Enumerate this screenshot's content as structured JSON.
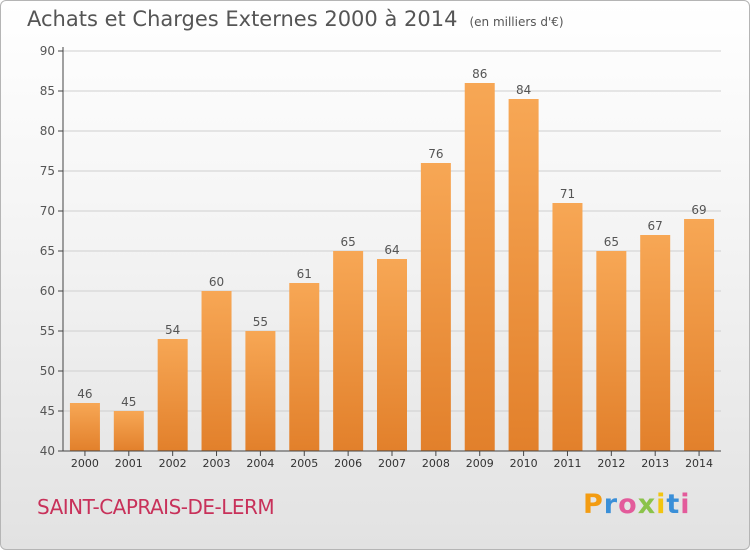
{
  "header": {
    "title": "Achats et Charges Externes 2000 à 2014",
    "unit": "(en milliers d'€)"
  },
  "footer": {
    "town": "SAINT-CAPRAIS-DE-LERM",
    "logo": "Proxiti",
    "logo_colors": [
      "#f39c12",
      "#3a8fd8",
      "#e35b9b",
      "#8bc34a",
      "#f2c511",
      "#3a8fd8",
      "#e35b9b"
    ]
  },
  "colors": {
    "bar_top": "#f7a755",
    "bar_bottom": "#e2802b",
    "axis": "#444444",
    "grid": "#cfcfcf",
    "text": "#555555"
  },
  "chart_data": {
    "type": "bar",
    "title": "Achats et Charges Externes 2000 à 2014",
    "subtitle": "(en milliers d'€)",
    "xlabel": "",
    "ylabel": "",
    "categories": [
      "2000",
      "2001",
      "2002",
      "2003",
      "2004",
      "2005",
      "2006",
      "2007",
      "2008",
      "2009",
      "2010",
      "2011",
      "2012",
      "2013",
      "2014"
    ],
    "values": [
      46,
      45,
      54,
      60,
      55,
      61,
      65,
      64,
      76,
      86,
      84,
      71,
      65,
      67,
      69
    ],
    "ylim": [
      40,
      90
    ],
    "yticks": [
      40,
      45,
      50,
      55,
      60,
      65,
      70,
      75,
      80,
      85,
      90
    ],
    "grid": true,
    "data_labels": true
  }
}
